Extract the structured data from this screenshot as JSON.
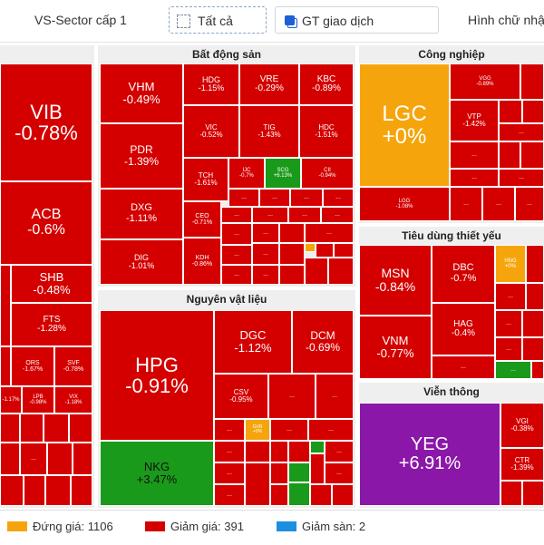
{
  "toolbar": {
    "sector_level": "VS-Sector cấp 1",
    "filter_all": "Tất cả",
    "size_by": "GT giao dịch",
    "shape": "Hình chữ nhật"
  },
  "colors": {
    "down": "#d40000",
    "reference": "#f5a50b",
    "up": "#1a9a1a",
    "ceiling": "#8b17a8"
  },
  "sectors": {
    "left": {
      "title": "",
      "tiles": [
        {
          "code": "VIB",
          "pct": "-0.78%",
          "status": "down"
        },
        {
          "code": "ACB",
          "pct": "-0.6%",
          "status": "down"
        },
        {
          "code": "SHB",
          "pct": "-0.48%",
          "status": "down"
        },
        {
          "code": "FTS",
          "pct": "-1.28%",
          "status": "down"
        },
        {
          "code": "ORS",
          "pct": "-1.67%",
          "status": "down"
        },
        {
          "code": "SVF",
          "pct": "-0.78%",
          "status": "down"
        },
        {
          "code": "",
          "pct": "-1.17%",
          "status": "down"
        },
        {
          "code": "LPB",
          "pct": "-0.98%",
          "status": "down"
        },
        {
          "code": "VIX",
          "pct": "-1.18%",
          "status": "down"
        }
      ]
    },
    "real_estate": {
      "title": "Bất động sản",
      "tiles": [
        {
          "code": "VHM",
          "pct": "-0.49%",
          "status": "down"
        },
        {
          "code": "HDG",
          "pct": "-1.15%",
          "status": "down"
        },
        {
          "code": "VRE",
          "pct": "-0.29%",
          "status": "down"
        },
        {
          "code": "KBC",
          "pct": "-0.89%",
          "status": "down"
        },
        {
          "code": "PDR",
          "pct": "-1.39%",
          "status": "down"
        },
        {
          "code": "VIC",
          "pct": "-0.52%",
          "status": "down"
        },
        {
          "code": "TIG",
          "pct": "-1.43%",
          "status": "down"
        },
        {
          "code": "HDC",
          "pct": "-1.51%",
          "status": "down"
        },
        {
          "code": "DXG",
          "pct": "-1.11%",
          "status": "down"
        },
        {
          "code": "TCH",
          "pct": "-1.61%",
          "status": "down"
        },
        {
          "code": "IJC",
          "pct": "-0.7%",
          "status": "down"
        },
        {
          "code": "SCG",
          "pct": "+6.13%",
          "status": "up"
        },
        {
          "code": "CII",
          "pct": "-0.94%",
          "status": "down"
        },
        {
          "code": "DIG",
          "pct": "-1.01%",
          "status": "down"
        },
        {
          "code": "CEO",
          "pct": "-0.71%",
          "status": "down"
        },
        {
          "code": "KDH",
          "pct": "-0.86%",
          "status": "down"
        }
      ]
    },
    "industrial": {
      "title": "Công nghiệp",
      "tiles": [
        {
          "code": "LGC",
          "pct": "+0%",
          "status": "reference"
        },
        {
          "code": "VGG",
          "pct": "-0.89%",
          "status": "down"
        },
        {
          "code": "VTP",
          "pct": "-1.42%",
          "status": "down"
        },
        {
          "code": "LGG",
          "pct": "-1.08%",
          "status": "down"
        }
      ]
    },
    "consumer_staples": {
      "title": "Tiêu dùng thiết yếu",
      "tiles": [
        {
          "code": "MSN",
          "pct": "-0.84%",
          "status": "down"
        },
        {
          "code": "DBC",
          "pct": "-0.7%",
          "status": "down"
        },
        {
          "code": "HNG",
          "pct": "+0%",
          "status": "reference"
        },
        {
          "code": "VNM",
          "pct": "-0.77%",
          "status": "down"
        },
        {
          "code": "HAG",
          "pct": "-0.4%",
          "status": "down"
        }
      ]
    },
    "materials": {
      "title": "Nguyên vật liệu",
      "tiles": [
        {
          "code": "HPG",
          "pct": "-0.91%",
          "status": "down"
        },
        {
          "code": "DGC",
          "pct": "-1.12%",
          "status": "down"
        },
        {
          "code": "DCM",
          "pct": "-0.69%",
          "status": "down"
        },
        {
          "code": "CSV",
          "pct": "-0.95%",
          "status": "down"
        },
        {
          "code": "NKG",
          "pct": "+3.47%",
          "status": "up"
        },
        {
          "code": "GVR",
          "pct": "+0%",
          "status": "reference"
        }
      ]
    },
    "telecom": {
      "title": "Viễn thông",
      "tiles": [
        {
          "code": "YEG",
          "pct": "+6.91%",
          "status": "ceiling"
        },
        {
          "code": "VGI",
          "pct": "-0.38%",
          "status": "down"
        },
        {
          "code": "CTR",
          "pct": "-1.39%",
          "status": "down"
        }
      ]
    }
  },
  "legend": [
    {
      "label": "Đứng giá: 1106",
      "color": "#f5a50b"
    },
    {
      "label": "Giảm giá: 391",
      "color": "#d40000"
    },
    {
      "label": "Giảm sàn: 2",
      "color": "#1c8fe0"
    }
  ]
}
